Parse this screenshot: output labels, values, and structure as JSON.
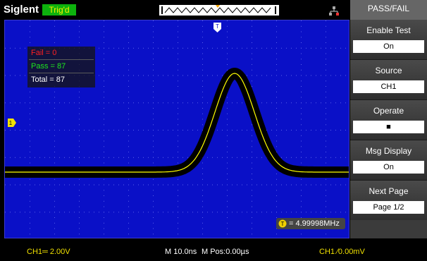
{
  "brand": "Siglent",
  "trigger_status": "Trig'd",
  "passfail": {
    "fail": "Fail = 0",
    "pass": "Pass = 87",
    "total": "Total = 87"
  },
  "frequency": "= 4.99998MHz",
  "menu": {
    "title": "PASS/FAIL",
    "items": [
      {
        "label": "Enable Test",
        "value": "On"
      },
      {
        "label": "Source",
        "value": "CH1"
      },
      {
        "label": "Operate",
        "value": "■"
      },
      {
        "label": "Msg Display",
        "value": "On"
      },
      {
        "label": "Next Page",
        "value": "Page 1/2"
      }
    ]
  },
  "status": {
    "ch1_scale": "CH1═ 2.00V",
    "timebase": "M 10.0ns",
    "mpos": "M Pos:0.00µs",
    "trigger": "CH1 ∕0.00mV"
  },
  "colors": {
    "screen": "#0a10c7",
    "waveform": "#ffff00",
    "fail": "#ff2020",
    "pass": "#1ee81e",
    "trig_badge": "#0db20d"
  }
}
